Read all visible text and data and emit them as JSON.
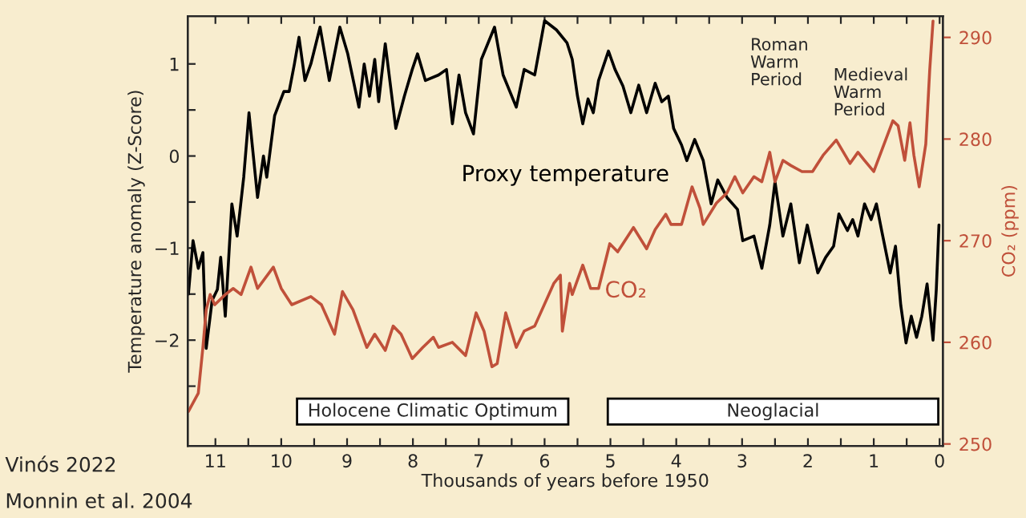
{
  "chart_data": {
    "type": "line",
    "xlabel": "Thousands of years before 1950",
    "ylabel": "Temperature anomaly (Z-Score)",
    "y2label": "CO₂ (ppm)",
    "xlim": [
      11.42,
      -0.05
    ],
    "ylim": [
      -3.15,
      1.52
    ],
    "y2lim": [
      249.8,
      292.1
    ],
    "xticks": [
      11,
      {
        "value": 10.5,
        "label": null
      },
      10,
      {
        "value": 9.5,
        "label": null
      },
      9,
      {
        "value": 8.5,
        "label": null
      },
      8,
      {
        "value": 7.5,
        "label": null
      },
      7,
      {
        "value": 6.5,
        "label": null
      },
      6,
      {
        "value": 5.5,
        "label": null
      },
      5,
      {
        "value": 4.5,
        "label": null
      },
      4,
      {
        "value": 3.5,
        "label": null
      },
      3,
      {
        "value": 2.5,
        "label": null
      },
      2,
      {
        "value": 1.5,
        "label": null
      },
      1,
      {
        "value": 0.5,
        "label": null
      },
      0
    ],
    "yticks": [
      {
        "value": -2.5,
        "label": null
      },
      {
        "value": -2,
        "label": "−2"
      },
      {
        "value": -1.5,
        "label": null
      },
      {
        "value": -1,
        "label": "−1"
      },
      {
        "value": -0.5,
        "label": null
      },
      0,
      {
        "value": 0.5,
        "label": null
      },
      1
    ],
    "y2ticks": [
      250,
      260,
      270,
      280,
      290
    ],
    "grid": false,
    "legend": false,
    "series": [
      {
        "name": "Proxy temperature",
        "color": "#000000",
        "axis": "y",
        "x": [
          11.41,
          11.34,
          11.26,
          11.19,
          11.14,
          11.05,
          10.97,
          10.92,
          10.85,
          10.75,
          10.67,
          10.57,
          10.49,
          10.36,
          10.27,
          10.22,
          10.1,
          10.02,
          9.96,
          9.88,
          9.8,
          9.73,
          9.64,
          9.55,
          9.41,
          9.27,
          9.11,
          8.99,
          8.82,
          8.74,
          8.66,
          8.58,
          8.52,
          8.42,
          8.26,
          8.13,
          8.01,
          7.93,
          7.81,
          7.61,
          7.49,
          7.4,
          7.3,
          7.2,
          7.08,
          6.96,
          6.76,
          6.63,
          6.43,
          6.31,
          6.15,
          6.0,
          5.82,
          5.66,
          5.58,
          5.5,
          5.42,
          5.34,
          5.26,
          5.18,
          5.03,
          4.93,
          4.81,
          4.69,
          4.57,
          4.45,
          4.32,
          4.22,
          4.12,
          4.04,
          3.92,
          3.84,
          3.72,
          3.59,
          3.47,
          3.37,
          3.23,
          3.07,
          2.99,
          2.82,
          2.7,
          2.58,
          2.5,
          2.38,
          2.26,
          2.13,
          2.01,
          1.85,
          1.73,
          1.61,
          1.53,
          1.4,
          1.32,
          1.24,
          1.14,
          1.04,
          0.96,
          0.88,
          0.75,
          0.67,
          0.59,
          0.51,
          0.43,
          0.35,
          0.27,
          0.19,
          0.1,
          0.05,
          0.01
        ],
        "values": [
          -1.5,
          -0.92,
          -1.22,
          -1.05,
          -2.09,
          -1.57,
          -1.45,
          -1.1,
          -1.74,
          -0.52,
          -0.87,
          -0.23,
          0.47,
          -0.45,
          0.0,
          -0.23,
          0.44,
          0.59,
          0.7,
          0.7,
          1.0,
          1.29,
          0.82,
          1.0,
          1.4,
          0.82,
          1.4,
          1.11,
          0.53,
          1.0,
          0.65,
          1.05,
          0.59,
          1.22,
          0.3,
          0.65,
          0.94,
          1.11,
          0.82,
          0.88,
          0.94,
          0.35,
          0.88,
          0.47,
          0.24,
          1.05,
          1.4,
          0.88,
          0.53,
          0.94,
          0.88,
          1.47,
          1.37,
          1.23,
          1.05,
          0.65,
          0.35,
          0.62,
          0.47,
          0.82,
          1.14,
          0.94,
          0.76,
          0.47,
          0.77,
          0.47,
          0.79,
          0.59,
          0.65,
          0.3,
          0.12,
          -0.05,
          0.18,
          -0.05,
          -0.52,
          -0.26,
          -0.45,
          -0.58,
          -0.92,
          -0.87,
          -1.22,
          -0.75,
          -0.28,
          -0.87,
          -0.52,
          -1.16,
          -0.75,
          -1.27,
          -1.1,
          -0.98,
          -0.63,
          -0.81,
          -0.69,
          -0.87,
          -0.52,
          -0.69,
          -0.52,
          -0.81,
          -1.27,
          -0.98,
          -1.62,
          -2.03,
          -1.74,
          -1.97,
          -1.74,
          -1.39,
          -2.0,
          -1.45,
          -0.75
        ]
      },
      {
        "name": "CO₂",
        "color": "#c0503a",
        "axis": "y2",
        "x": [
          11.41,
          11.26,
          11.19,
          11.14,
          11.08,
          11.01,
          10.85,
          10.73,
          10.61,
          10.46,
          10.36,
          10.12,
          10.0,
          9.84,
          9.55,
          9.39,
          9.19,
          9.07,
          8.91,
          8.7,
          8.58,
          8.42,
          8.3,
          8.18,
          8.01,
          7.85,
          7.69,
          7.61,
          7.4,
          7.2,
          7.04,
          6.92,
          6.8,
          6.72,
          6.59,
          6.43,
          6.31,
          6.15,
          5.86,
          5.76,
          5.73,
          5.62,
          5.58,
          5.42,
          5.3,
          5.18,
          5.01,
          4.89,
          4.65,
          4.45,
          4.32,
          4.16,
          4.08,
          3.92,
          3.76,
          3.64,
          3.59,
          3.39,
          3.23,
          3.11,
          2.99,
          2.82,
          2.7,
          2.58,
          2.5,
          2.38,
          2.26,
          2.09,
          1.93,
          1.77,
          1.57,
          1.36,
          1.24,
          1.14,
          1.0,
          0.71,
          0.63,
          0.53,
          0.45,
          0.39,
          0.31,
          0.21,
          0.15,
          0.1
        ],
        "values": [
          253.2,
          255.0,
          259.5,
          263.2,
          264.7,
          263.7,
          264.7,
          265.3,
          264.7,
          267.4,
          265.3,
          267.4,
          265.3,
          263.7,
          264.5,
          263.7,
          260.8,
          265.0,
          263.2,
          259.5,
          260.8,
          259.2,
          261.6,
          260.8,
          258.4,
          259.5,
          260.5,
          259.5,
          260.0,
          258.7,
          262.9,
          261.1,
          257.6,
          257.9,
          262.9,
          259.5,
          261.1,
          261.6,
          265.8,
          266.6,
          261.1,
          265.8,
          264.7,
          267.6,
          265.3,
          265.3,
          269.7,
          268.9,
          271.3,
          269.2,
          271.1,
          272.6,
          271.6,
          271.6,
          275.3,
          273.2,
          271.6,
          273.7,
          274.7,
          276.3,
          274.7,
          276.3,
          275.8,
          278.7,
          275.8,
          277.9,
          277.4,
          276.8,
          276.8,
          278.4,
          279.9,
          277.6,
          278.7,
          277.9,
          276.8,
          281.8,
          281.3,
          277.9,
          281.6,
          278.4,
          275.3,
          279.5,
          286.8,
          291.6
        ]
      }
    ],
    "bands": [
      {
        "axis": "x",
        "from": 9.76,
        "to": 5.64,
        "label": "Holocene Climatic Optimum",
        "color": "#ffffff"
      },
      {
        "axis": "x",
        "from": 5.04,
        "to": 0.02,
        "label": "Neoglacial",
        "color": "#ffffff"
      }
    ],
    "annotations": [
      "Roman\nWarm\nPeriod",
      "Medieval\nWarm\nPeriod",
      "Vinós 2022",
      "Monnin et al. 2004"
    ]
  }
}
